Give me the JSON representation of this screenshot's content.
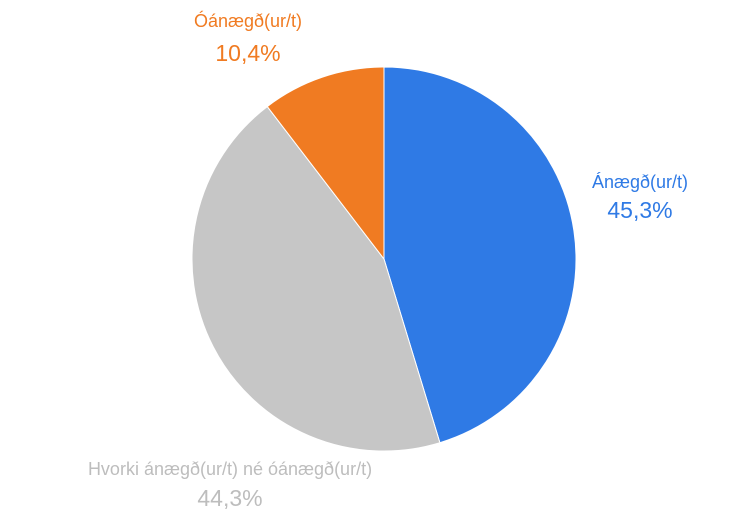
{
  "chart_data": {
    "type": "pie",
    "categories": [
      "Ánægð(ur/t)",
      "Hvorki ánægð(ur/t) né óánægð(ur/t)",
      "Óánægð(ur/t)"
    ],
    "values": [
      45.3,
      44.3,
      10.4
    ],
    "value_labels": [
      "45,3%",
      "44,3%",
      "10,4%"
    ],
    "colors": [
      "#2f7ae5",
      "#c6c6c6",
      "#f07b22"
    ]
  }
}
